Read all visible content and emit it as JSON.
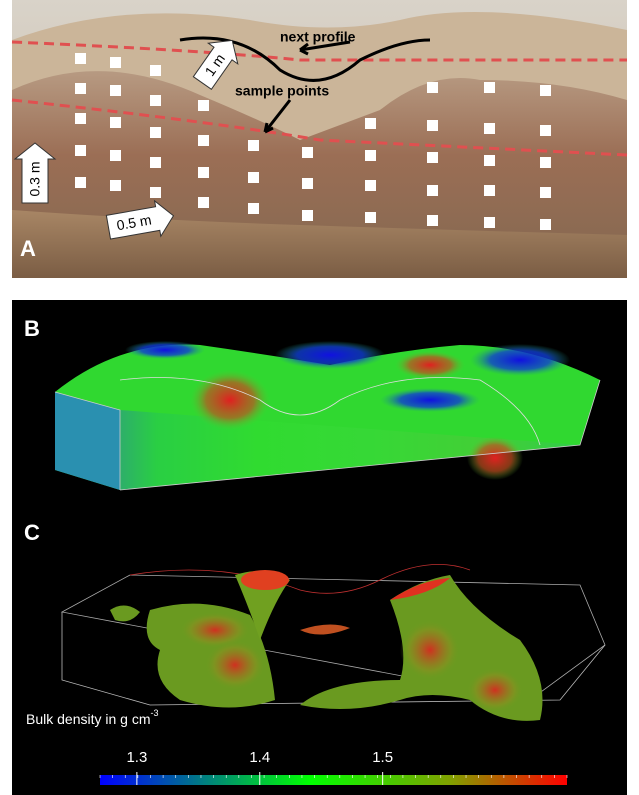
{
  "panels": {
    "a": {
      "label": "A",
      "annotations": {
        "next_profile": "next profile",
        "sample_points": "sample points",
        "scale_1m": "1 m",
        "scale_03m": "0.3 m",
        "scale_05m": "0.5 m"
      }
    },
    "b": {
      "label": "B"
    },
    "c": {
      "label": "C"
    }
  },
  "colorbar": {
    "title": "Bulk density in g cm",
    "title_superscript": "-3",
    "lim": [
      1.27,
      1.65
    ],
    "ticks": [
      1.3,
      1.4,
      1.5
    ]
  }
}
